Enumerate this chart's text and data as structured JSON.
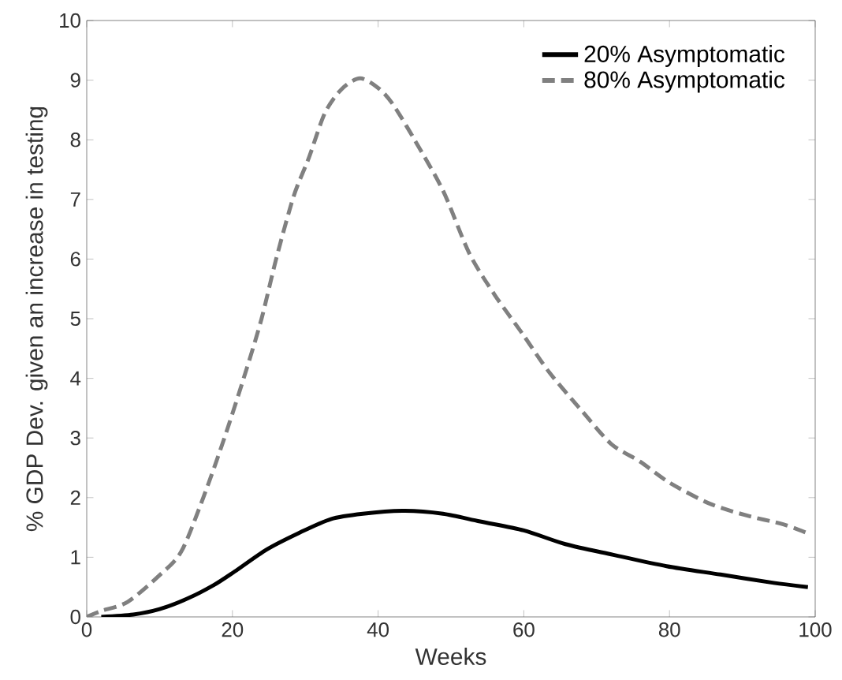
{
  "chart_data": {
    "type": "line",
    "xlabel": "Weeks",
    "ylabel": "% GDP Dev. given an increase in testing",
    "xlim": [
      0,
      100
    ],
    "ylim": [
      0,
      10
    ],
    "xticks": [
      0,
      20,
      40,
      60,
      80,
      100
    ],
    "yticks": [
      0,
      1,
      2,
      3,
      4,
      5,
      6,
      7,
      8,
      9,
      10
    ],
    "grid": false,
    "legend": "top right",
    "series": [
      {
        "name": "20% Asymptomatic",
        "color": "#000000",
        "line_style": "solid",
        "x": [
          2,
          6.4,
          10,
          13.7,
          17.4,
          20.3,
          24.7,
          29,
          33.5,
          37.9,
          43.7,
          48.9,
          54,
          60,
          65.7,
          72.3,
          79.6,
          87,
          94.3,
          99
        ],
        "values": [
          0,
          0.04,
          0.13,
          0.3,
          0.53,
          0.76,
          1.13,
          1.4,
          1.64,
          1.73,
          1.78,
          1.73,
          1.6,
          1.45,
          1.22,
          1.04,
          0.85,
          0.71,
          0.57,
          0.5
        ]
      },
      {
        "name": "80% Asymptomatic",
        "color": "#808080",
        "line_style": "dashed",
        "x": [
          0,
          2,
          5.6,
          10,
          13,
          16,
          18.9,
          21.8,
          24,
          26,
          28.4,
          30.5,
          32.7,
          35,
          37.5,
          40,
          42,
          45,
          48.9,
          52.5,
          56,
          59.8,
          63.5,
          68,
          72,
          76,
          80,
          85.5,
          90.6,
          95.7,
          99
        ],
        "values": [
          0,
          0.1,
          0.25,
          0.7,
          1.1,
          2,
          3,
          4.1,
          5,
          6,
          7.05,
          7.7,
          8.45,
          8.85,
          9.03,
          8.87,
          8.6,
          8,
          7.15,
          6.1,
          5.4,
          4.75,
          4.1,
          3.45,
          2.9,
          2.6,
          2.25,
          1.9,
          1.7,
          1.55,
          1.4
        ]
      }
    ]
  }
}
